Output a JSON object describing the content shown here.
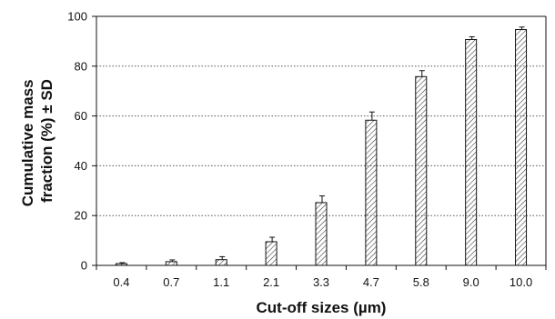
{
  "chart_data": {
    "type": "bar",
    "title": "",
    "xlabel": "Cut-off sizes (µm)",
    "ylabel_lines": [
      "Cumulative mass",
      "fraction (%) ± SD"
    ],
    "categories": [
      "0.4",
      "0.7",
      "1.1",
      "2.1",
      "3.3",
      "4.7",
      "5.8",
      "9.0",
      "10.0"
    ],
    "values": [
      0.7,
      1.5,
      2.3,
      9.5,
      25.2,
      58.3,
      75.8,
      90.7,
      94.7
    ],
    "errors": [
      0.4,
      0.7,
      1.2,
      1.8,
      2.7,
      3.3,
      2.4,
      1.1,
      1.0
    ],
    "ylim": [
      0,
      100
    ],
    "yticks": [
      0,
      20,
      40,
      60,
      80,
      100
    ],
    "grid": "horizontal dotted",
    "bar_fill": "diagonal hatch",
    "colors": {
      "bar_stroke": "#111111",
      "hatch": "#333333",
      "grid": "#555555"
    }
  }
}
